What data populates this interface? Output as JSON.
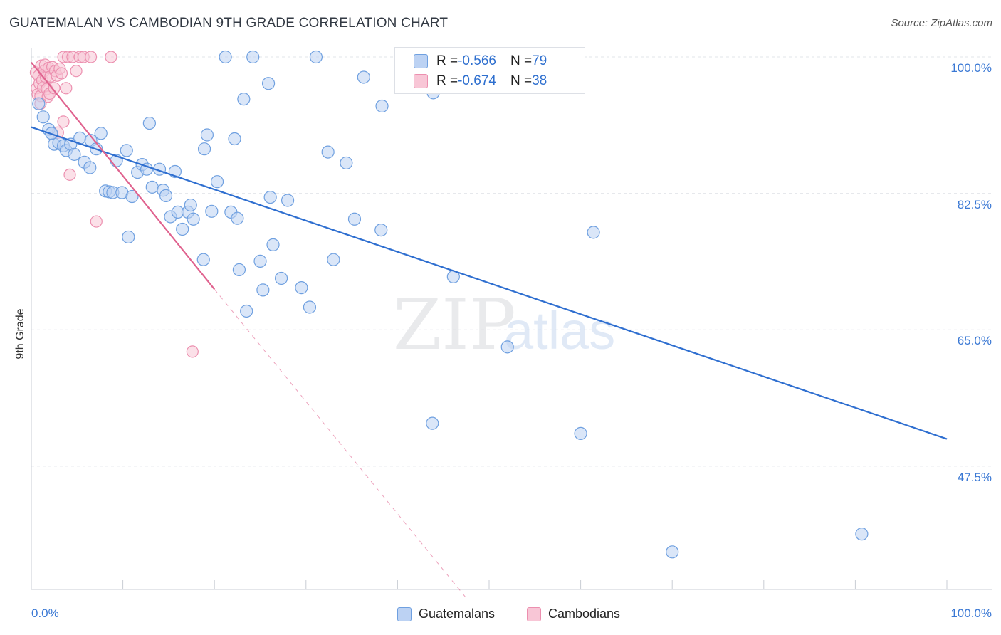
{
  "title": "GUATEMALAN VS CAMBODIAN 9TH GRADE CORRELATION CHART",
  "source": "Source: ZipAtlas.com",
  "colors": {
    "blue": "#6fa0e0",
    "blue_fill": "#bcd2f3",
    "blue_line": "#2f6fd0",
    "pink": "#ec8faf",
    "pink_fill": "#f8c6d6",
    "pink_line": "#e0638f",
    "axis_text": "#3a78d4",
    "grid": "#e2e5ea"
  },
  "legend": {
    "rows": [
      {
        "r_label": "R = ",
        "r_value": "-0.566",
        "n_label": "N = ",
        "n_value": "79"
      },
      {
        "r_label": "R = ",
        "r_value": "-0.674",
        "n_label": "N = ",
        "n_value": "38"
      }
    ]
  },
  "bottom_legend": [
    "Guatemalans",
    "Cambodians"
  ],
  "watermark": {
    "zip": "ZIP",
    "atlas": "atlas"
  },
  "chart_data": {
    "type": "scatter",
    "title": "GUATEMALAN VS CAMBODIAN 9TH GRADE CORRELATION CHART",
    "xlabel": "",
    "ylabel": "9th Grade",
    "x_tick_labels": [
      "0.0%",
      "100.0%"
    ],
    "y_tick_labels": [
      "100.0%",
      "82.5%",
      "65.0%",
      "47.5%"
    ],
    "y_ticks": [
      100.0,
      82.5,
      65.0,
      47.5
    ],
    "xlim": [
      0,
      100
    ],
    "ylim": [
      34.0,
      101.0
    ],
    "grid": true,
    "legend_placement": "top-center",
    "series": [
      {
        "name": "Guatemalans",
        "color": "blue",
        "R": -0.566,
        "N": 79,
        "trend": {
          "x1": 0,
          "y1": 91.0,
          "x2": 100,
          "y2": 51.0
        },
        "points": [
          [
            0.8,
            94.0
          ],
          [
            1.3,
            92.3
          ],
          [
            1.9,
            90.7
          ],
          [
            2.2,
            90.2
          ],
          [
            2.5,
            88.8
          ],
          [
            3.0,
            89.0
          ],
          [
            3.5,
            88.6
          ],
          [
            3.8,
            88.0
          ],
          [
            4.3,
            88.8
          ],
          [
            4.7,
            87.5
          ],
          [
            5.3,
            89.6
          ],
          [
            5.8,
            86.5
          ],
          [
            6.4,
            85.8
          ],
          [
            6.5,
            89.3
          ],
          [
            7.1,
            88.2
          ],
          [
            7.6,
            90.2
          ],
          [
            8.1,
            82.8
          ],
          [
            8.5,
            82.7
          ],
          [
            8.9,
            82.6
          ],
          [
            9.3,
            86.7
          ],
          [
            9.9,
            82.6
          ],
          [
            10.4,
            88.0
          ],
          [
            10.6,
            76.9
          ],
          [
            11.0,
            82.1
          ],
          [
            11.6,
            85.2
          ],
          [
            12.1,
            86.2
          ],
          [
            12.6,
            85.6
          ],
          [
            12.9,
            91.5
          ],
          [
            13.2,
            83.3
          ],
          [
            14.0,
            85.6
          ],
          [
            14.4,
            82.9
          ],
          [
            14.7,
            82.2
          ],
          [
            15.2,
            79.5
          ],
          [
            15.7,
            85.3
          ],
          [
            16.0,
            80.1
          ],
          [
            16.5,
            77.9
          ],
          [
            17.1,
            80.1
          ],
          [
            17.4,
            81.0
          ],
          [
            17.7,
            79.2
          ],
          [
            18.8,
            74.0
          ],
          [
            18.9,
            88.2
          ],
          [
            19.2,
            90.0
          ],
          [
            19.7,
            80.2
          ],
          [
            20.3,
            84.0
          ],
          [
            21.2,
            100.0
          ],
          [
            21.8,
            80.1
          ],
          [
            22.2,
            89.5
          ],
          [
            22.5,
            79.3
          ],
          [
            22.7,
            72.7
          ],
          [
            23.2,
            94.6
          ],
          [
            23.5,
            67.4
          ],
          [
            24.2,
            100.0
          ],
          [
            25.0,
            73.8
          ],
          [
            25.3,
            70.1
          ],
          [
            25.9,
            96.6
          ],
          [
            26.1,
            82.0
          ],
          [
            26.4,
            75.9
          ],
          [
            27.3,
            71.6
          ],
          [
            28.0,
            81.6
          ],
          [
            29.5,
            70.4
          ],
          [
            30.4,
            67.9
          ],
          [
            31.1,
            100.0
          ],
          [
            32.4,
            87.8
          ],
          [
            33.0,
            74.0
          ],
          [
            34.4,
            86.4
          ],
          [
            35.3,
            79.2
          ],
          [
            36.3,
            97.4
          ],
          [
            38.2,
            77.8
          ],
          [
            38.3,
            93.7
          ],
          [
            43.8,
            53.0
          ],
          [
            43.9,
            95.4
          ],
          [
            46.1,
            71.8
          ],
          [
            52.0,
            62.8
          ],
          [
            58.8,
            100.0
          ],
          [
            60.0,
            51.7
          ],
          [
            61.4,
            77.5
          ],
          [
            90.7,
            38.8
          ],
          [
            70.0,
            36.5
          ],
          [
            2.2,
            90.2
          ]
        ]
      },
      {
        "name": "Cambodians",
        "color": "pink",
        "R": -0.674,
        "N": 38,
        "trend": {
          "x1": 0,
          "y1": 99.3,
          "x2": 20,
          "y2": 70.2
        },
        "trend_ext": {
          "x1": 20,
          "y1": 70.2,
          "x2": 47.5,
          "y2": 30.5
        },
        "points": [
          [
            0.5,
            98.0
          ],
          [
            0.6,
            96.0
          ],
          [
            0.7,
            95.2
          ],
          [
            0.8,
            97.6
          ],
          [
            0.9,
            96.6
          ],
          [
            1.0,
            95.0
          ],
          [
            1.1,
            98.9
          ],
          [
            1.2,
            97.0
          ],
          [
            1.3,
            96.1
          ],
          [
            1.4,
            98.2
          ],
          [
            1.5,
            99.0
          ],
          [
            1.6,
            97.4
          ],
          [
            1.7,
            95.9
          ],
          [
            1.8,
            94.9
          ],
          [
            1.9,
            98.6
          ],
          [
            2.0,
            95.3
          ],
          [
            2.1,
            97.5
          ],
          [
            2.3,
            98.7
          ],
          [
            2.5,
            96.0
          ],
          [
            2.6,
            98.2
          ],
          [
            2.8,
            97.6
          ],
          [
            2.9,
            90.3
          ],
          [
            3.1,
            98.5
          ],
          [
            3.3,
            97.9
          ],
          [
            3.5,
            91.7
          ],
          [
            3.5,
            100.0
          ],
          [
            3.8,
            96.0
          ],
          [
            4.0,
            100.0
          ],
          [
            4.2,
            84.9
          ],
          [
            4.5,
            100.0
          ],
          [
            4.9,
            98.2
          ],
          [
            5.3,
            100.0
          ],
          [
            5.7,
            100.0
          ],
          [
            6.5,
            100.0
          ],
          [
            7.1,
            78.9
          ],
          [
            8.7,
            100.0
          ],
          [
            17.6,
            62.2
          ],
          [
            1.0,
            94.0
          ]
        ]
      }
    ]
  }
}
